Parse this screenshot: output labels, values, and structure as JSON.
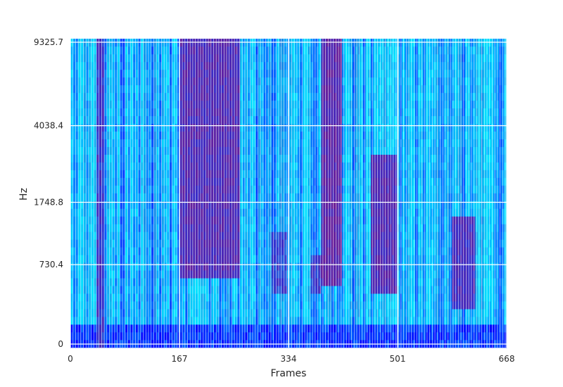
{
  "chart_data": {
    "type": "heatmap",
    "title": "",
    "xlabel": "Frames",
    "ylabel": "Hz",
    "x_ticks": [
      "0",
      "167",
      "334",
      "501",
      "668"
    ],
    "y_ticks": [
      "0",
      "730.4",
      "1748.8",
      "4038.4",
      "9325.7"
    ],
    "xlim": [
      0,
      668
    ],
    "y_scale": "mel",
    "ylim": [
      0,
      9325.7
    ],
    "colormap": [
      "#0000ff",
      "#00e5ff",
      "#3030d0",
      "#7a1a8a"
    ],
    "grid": true,
    "grid_color": "#ffffff",
    "energy_regions": [
      {
        "x": [
          40,
          50
        ],
        "y": [
          0,
          9325.7
        ],
        "level": 0.75
      },
      {
        "x": [
          170,
          260
        ],
        "y": [
          600,
          9325.7
        ],
        "level": 0.85
      },
      {
        "x": [
          310,
          330
        ],
        "y": [
          400,
          1200
        ],
        "level": 0.7
      },
      {
        "x": [
          370,
          385
        ],
        "y": [
          400,
          900
        ],
        "level": 0.75
      },
      {
        "x": [
          385,
          415
        ],
        "y": [
          500,
          9325.7
        ],
        "level": 0.9
      },
      {
        "x": [
          460,
          500
        ],
        "y": [
          400,
          3000
        ],
        "level": 0.85
      },
      {
        "x": [
          585,
          620
        ],
        "y": [
          300,
          1500
        ],
        "level": 0.8
      }
    ]
  }
}
